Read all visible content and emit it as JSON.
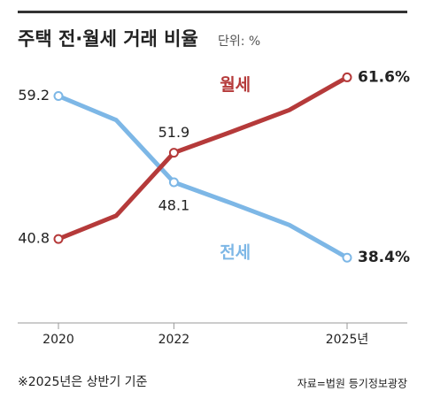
{
  "chart_data": {
    "type": "line",
    "title": "주택 전·월세 거래 비율",
    "subtitle": "단위: %",
    "categories": [
      "2020",
      null,
      "2022",
      null,
      null,
      "2025년"
    ],
    "series": [
      {
        "name": "전세",
        "color": "#7db7e6",
        "values": [
          59.2,
          56.1,
          48.1,
          45.4,
          42.6,
          38.4
        ],
        "value_labels": [
          "59.2",
          null,
          "48.1",
          null,
          null,
          "38.4%"
        ]
      },
      {
        "name": "월세",
        "color": "#b53a3a",
        "values": [
          40.8,
          43.8,
          51.9,
          54.6,
          57.4,
          61.6
        ],
        "value_labels": [
          "40.8",
          null,
          "51.9",
          null,
          null,
          "61.6%"
        ]
      }
    ],
    "ylim": [
      30,
      67
    ],
    "footnote": "※2025년은 상반기 기준",
    "source": "자료=법원 등기정보광장"
  }
}
